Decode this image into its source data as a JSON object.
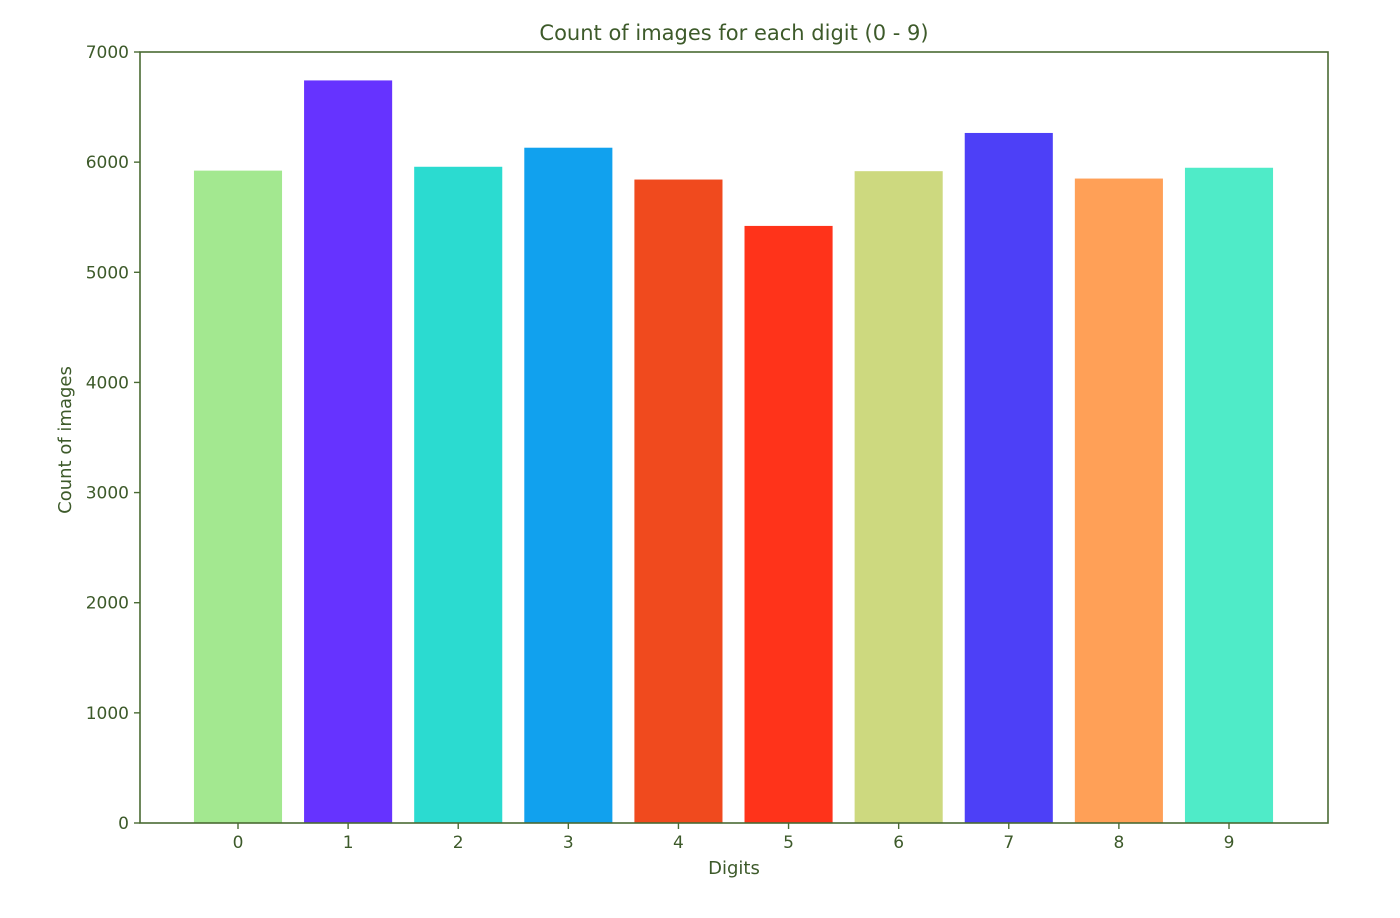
{
  "chart_data": {
    "type": "bar",
    "title": "Count of images for each digit (0 - 9)",
    "xlabel": "Digits",
    "ylabel": "Count of images",
    "categories": [
      "0",
      "1",
      "2",
      "3",
      "4",
      "5",
      "6",
      "7",
      "8",
      "9"
    ],
    "values": [
      5923,
      6742,
      5958,
      6131,
      5842,
      5421,
      5918,
      6265,
      5851,
      5949
    ],
    "bar_colors": [
      "#a3e890",
      "#6633ff",
      "#2bdbd0",
      "#11a1ee",
      "#f04a1e",
      "#ff331a",
      "#cdd97f",
      "#4d40f7",
      "#ffa057",
      "#4febc8"
    ],
    "ylim": [
      0,
      7000
    ],
    "yticks": [
      0,
      1000,
      2000,
      3000,
      4000,
      5000,
      6000,
      7000
    ],
    "grid": false,
    "legend": false,
    "text_color": "#3d5a2a",
    "axis_color": "#4a6a33"
  }
}
